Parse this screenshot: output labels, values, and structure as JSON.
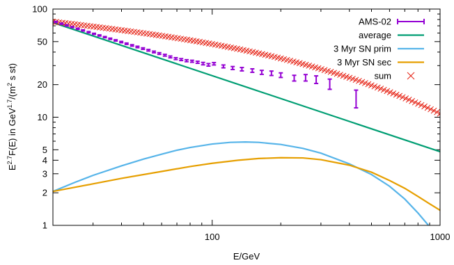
{
  "chart_data": {
    "type": "line",
    "xlabel": "E/GeV",
    "ylabel_parts": [
      "E",
      "2.7",
      "F(E) in GeV",
      "1.7",
      "/(m",
      "2",
      " s st)"
    ],
    "x_scale": "log",
    "y_scale": "log",
    "xlim": [
      20,
      1000
    ],
    "ylim": [
      1,
      100
    ],
    "x_ticks": [
      100,
      1000
    ],
    "x_tick_labels": [
      "100",
      "1000"
    ],
    "y_ticks": [
      1,
      2,
      3,
      4,
      5,
      10,
      20,
      50,
      100
    ],
    "y_tick_labels": [
      "1",
      "2",
      "3",
      "4",
      "5",
      "10",
      "20",
      "50",
      "100"
    ],
    "legend_position": "top-right",
    "series": [
      {
        "name": "AMS-02",
        "style": "errorbars",
        "color": "#9400d3",
        "points": [
          [
            20.6,
            76.0
          ],
          [
            21.8,
            73.2
          ],
          [
            23.0,
            70.6
          ],
          [
            24.3,
            68.1
          ],
          [
            25.7,
            65.7
          ],
          [
            27.1,
            63.4
          ],
          [
            28.7,
            61.1
          ],
          [
            30.3,
            59.0
          ],
          [
            32.0,
            57.0
          ],
          [
            33.8,
            55.0
          ],
          [
            35.7,
            53.1
          ],
          [
            37.7,
            51.3
          ],
          [
            39.9,
            49.5
          ],
          [
            42.1,
            47.8
          ],
          [
            44.5,
            46.1
          ],
          [
            47.0,
            44.6
          ],
          [
            49.7,
            43.1
          ],
          [
            52.5,
            41.6
          ],
          [
            55.5,
            40.1
          ],
          [
            58.6,
            38.8
          ],
          [
            62.0,
            37.4
          ],
          [
            65.5,
            36.1
          ],
          [
            69.2,
            34.8
          ],
          [
            73.1,
            34.1
          ],
          [
            77.2,
            33.3
          ],
          [
            81.6,
            32.9
          ],
          [
            86.3,
            32.2
          ],
          [
            91.2,
            31.3
          ],
          [
            96.3,
            30.5
          ],
          [
            101.8,
            31.2
          ],
          [
            112.0,
            29.5
          ],
          [
            123.0,
            28.5
          ],
          [
            135.0,
            27.8
          ],
          [
            150.0,
            27.0
          ],
          [
            165.0,
            26.0
          ],
          [
            182.0,
            25.5
          ],
          [
            200.0,
            24.5
          ],
          [
            229.0,
            23.0
          ],
          [
            257.0,
            23.2
          ],
          [
            286.0,
            22.3
          ],
          [
            328.0,
            20.3
          ],
          [
            428.0,
            15.0
          ]
        ],
        "errors": [
          0.9,
          0.9,
          0.9,
          0.8,
          0.8,
          0.8,
          0.8,
          0.7,
          0.7,
          0.7,
          0.7,
          0.7,
          0.7,
          0.7,
          0.7,
          0.7,
          0.7,
          0.7,
          0.7,
          0.7,
          0.7,
          0.7,
          0.7,
          0.7,
          0.7,
          0.7,
          0.7,
          0.8,
          0.8,
          0.8,
          0.9,
          0.9,
          1.0,
          1.0,
          1.1,
          1.2,
          1.2,
          1.4,
          1.6,
          1.8,
          2.2,
          2.8
        ]
      },
      {
        "name": "average",
        "style": "line",
        "color": "#009e73",
        "points": [
          [
            20.0,
            75.0
          ],
          [
            1000.0,
            4.8
          ]
        ]
      },
      {
        "name": "3 Myr SN prim",
        "style": "line",
        "color": "#56b4e9",
        "points": [
          [
            20.0,
            2.06
          ],
          [
            25.0,
            2.5
          ],
          [
            30.0,
            2.9
          ],
          [
            40.0,
            3.55
          ],
          [
            50.0,
            4.1
          ],
          [
            60.0,
            4.55
          ],
          [
            70.0,
            4.95
          ],
          [
            80.0,
            5.25
          ],
          [
            100.0,
            5.65
          ],
          [
            120.0,
            5.85
          ],
          [
            140.0,
            5.9
          ],
          [
            160.0,
            5.85
          ],
          [
            200.0,
            5.6
          ],
          [
            250.0,
            5.15
          ],
          [
            300.0,
            4.65
          ],
          [
            400.0,
            3.7
          ],
          [
            500.0,
            2.95
          ],
          [
            600.0,
            2.3
          ],
          [
            700.0,
            1.75
          ],
          [
            800.0,
            1.3
          ],
          [
            900.0,
            0.97
          ]
        ]
      },
      {
        "name": "3 Myr SN sec",
        "style": "line",
        "color": "#e69f00",
        "points": [
          [
            20.0,
            2.06
          ],
          [
            30.0,
            2.42
          ],
          [
            40.0,
            2.72
          ],
          [
            60.0,
            3.15
          ],
          [
            80.0,
            3.5
          ],
          [
            100.0,
            3.75
          ],
          [
            130.0,
            4.0
          ],
          [
            160.0,
            4.15
          ],
          [
            200.0,
            4.22
          ],
          [
            250.0,
            4.2
          ],
          [
            300.0,
            4.05
          ],
          [
            400.0,
            3.6
          ],
          [
            500.0,
            3.1
          ],
          [
            600.0,
            2.6
          ],
          [
            700.0,
            2.2
          ],
          [
            800.0,
            1.85
          ],
          [
            900.0,
            1.58
          ],
          [
            1000.0,
            1.38
          ]
        ]
      },
      {
        "name": "sum",
        "style": "points-x",
        "color": "#e51e10",
        "formula": "y = 76.5 * (x/20)^(-0.255 - 0.085*log10(x/20)^2)",
        "x_range": [
          20,
          1000
        ],
        "count": 125
      }
    ]
  }
}
